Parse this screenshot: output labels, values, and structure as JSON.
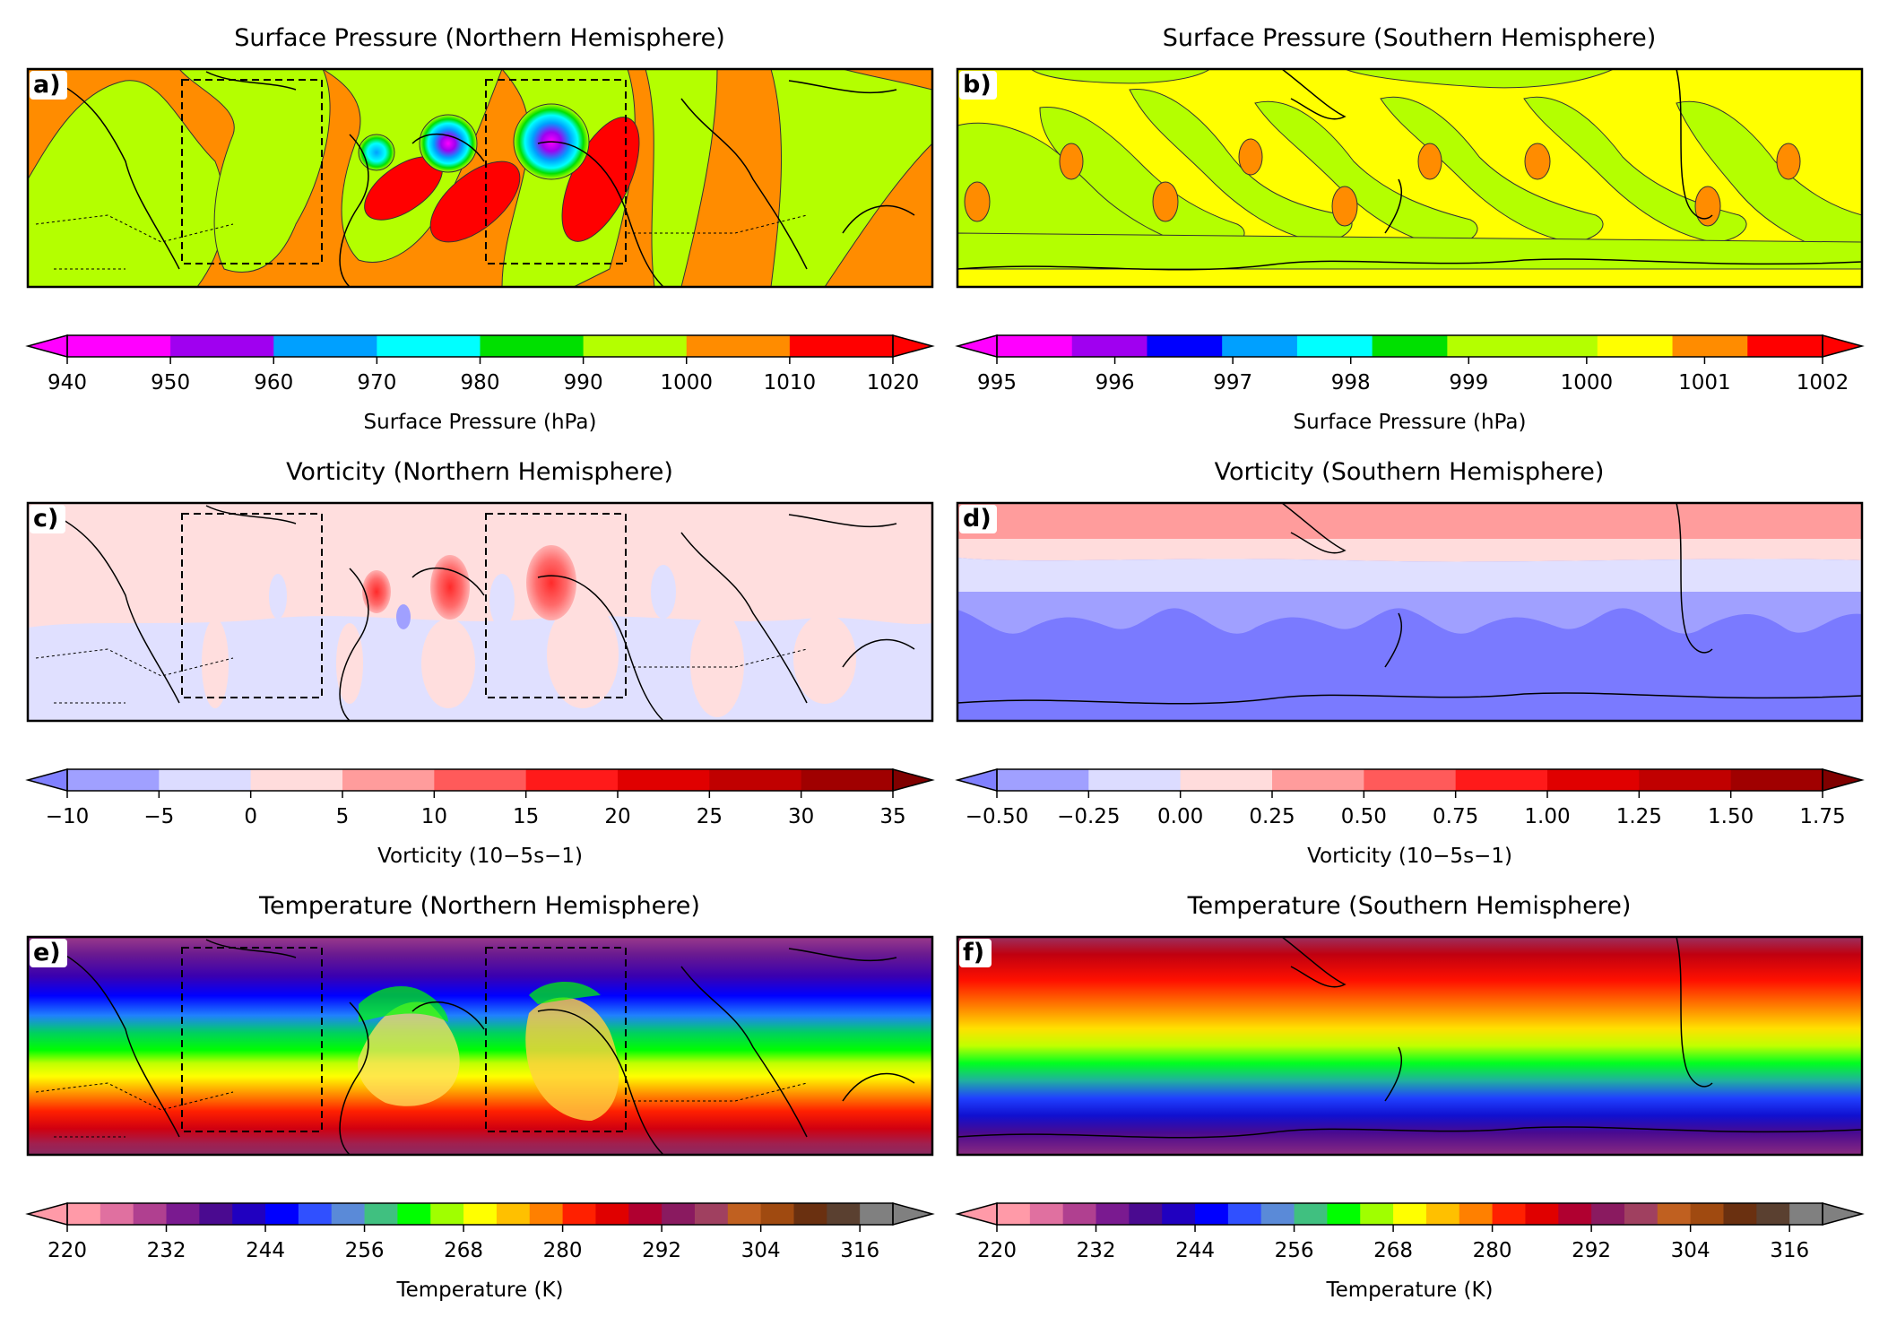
{
  "panels": [
    {
      "id": "a",
      "label": "a)",
      "title": "Surface Pressure (Northern Hemisphere)",
      "field": "pressure",
      "hemisphere": "north"
    },
    {
      "id": "b",
      "label": "b)",
      "title": "Surface Pressure (Southern Hemisphere)",
      "field": "pressure",
      "hemisphere": "south"
    },
    {
      "id": "c",
      "label": "c)",
      "title": "Vorticity (Northern Hemisphere)",
      "field": "vorticity",
      "hemisphere": "north"
    },
    {
      "id": "d",
      "label": "d)",
      "title": "Vorticity (Southern Hemisphere)",
      "field": "vorticity",
      "hemisphere": "south"
    },
    {
      "id": "e",
      "label": "e)",
      "title": "Temperature (Northern Hemisphere)",
      "field": "temperature",
      "hemisphere": "north"
    },
    {
      "id": "f",
      "label": "f)",
      "title": "Temperature (Southern Hemisphere)",
      "field": "temperature",
      "hemisphere": "south"
    }
  ],
  "colorbars": [
    {
      "id": "cb-a",
      "label": "Surface Pressure (hPa)",
      "min": 940,
      "max": 1020,
      "ticks": [
        "940",
        "950",
        "960",
        "970",
        "980",
        "990",
        "1000",
        "1010",
        "1020"
      ],
      "colors": [
        "#ff00ff",
        "#a000f0",
        "#00a0ff",
        "#00ffff",
        "#00e000",
        "#b4ff00",
        "#ff8c00",
        "#ff0000"
      ],
      "extend_low": "#ff00ff",
      "extend_high": "#ff0000"
    },
    {
      "id": "cb-b",
      "label": "Surface Pressure (hPa)",
      "min": 995,
      "max": 1002,
      "ticks": [
        "995",
        "996",
        "997",
        "998",
        "999",
        "1000",
        "1001",
        "1002"
      ],
      "colors": [
        "#ff00ff",
        "#a000f0",
        "#0000ff",
        "#00a0ff",
        "#00ffff",
        "#00e000",
        "#b4ff00",
        "#b4ff00",
        "#ffff00",
        "#ff8c00",
        "#ff0000"
      ],
      "extend_low": "#ff00ff",
      "extend_high": "#ff0000"
    },
    {
      "id": "cb-c",
      "label": "Vorticity (10−5s−1)",
      "min": -10,
      "max": 35,
      "ticks": [
        "−10",
        "−5",
        "0",
        "5",
        "10",
        "15",
        "20",
        "25",
        "30",
        "35"
      ],
      "colors": [
        "#a0a0ff",
        "#dcdcff",
        "#ffdcdc",
        "#ff9c9c",
        "#ff5a5a",
        "#ff1a1a",
        "#e00000",
        "#c00000",
        "#a00000"
      ],
      "extend_low": "#8080ff",
      "extend_high": "#800000"
    },
    {
      "id": "cb-d",
      "label": "Vorticity (10−5s−1)",
      "min": -0.5,
      "max": 1.75,
      "ticks": [
        "−0.50",
        "−0.25",
        "0.00",
        "0.25",
        "0.50",
        "0.75",
        "1.00",
        "1.25",
        "1.50",
        "1.75"
      ],
      "colors": [
        "#a0a0ff",
        "#dcdcff",
        "#ffdcdc",
        "#ff9c9c",
        "#ff5a5a",
        "#ff1a1a",
        "#e00000",
        "#c00000",
        "#a00000"
      ],
      "extend_low": "#8080ff",
      "extend_high": "#800000"
    },
    {
      "id": "cb-e",
      "label": "Temperature (K)",
      "min": 220,
      "max": 320,
      "ticks": [
        "220",
        "232",
        "244",
        "256",
        "268",
        "280",
        "292",
        "304",
        "316"
      ]
    },
    {
      "id": "cb-f",
      "label": "Temperature (K)",
      "min": 220,
      "max": 320,
      "ticks": [
        "220",
        "232",
        "244",
        "256",
        "268",
        "280",
        "292",
        "304",
        "316"
      ]
    }
  ],
  "colors": {
    "temperature_ramp": [
      "#ff9aa8",
      "#e070a0",
      "#b04090",
      "#7a1a90",
      "#4a0a90",
      "#2000c0",
      "#0000ff",
      "#3050ff",
      "#5a8ad8",
      "#40c080",
      "#00ff00",
      "#a0ff00",
      "#ffff00",
      "#ffc000",
      "#ff8000",
      "#ff2000",
      "#e00000",
      "#b00030",
      "#8a1a60",
      "#a04060",
      "#c06020",
      "#a04a10",
      "#6a3010",
      "#5a4030",
      "#808080"
    ]
  }
}
